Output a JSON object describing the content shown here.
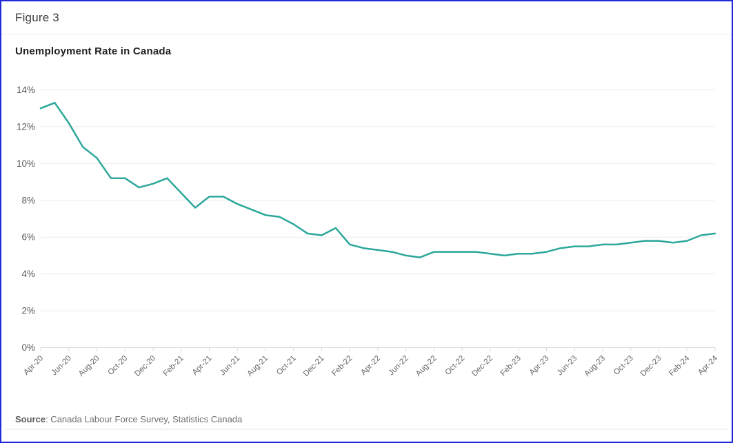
{
  "figure": {
    "label": "Figure 3"
  },
  "source": {
    "label": "Source",
    "text": ": Canada Labour Force Survey, Statistics Canada"
  },
  "colors": {
    "line": "#2ba79b",
    "border": "#2228d6",
    "grid": "#ebebeb",
    "axis_line": "#dcdcdc",
    "tick": "#d9d9d9",
    "y_label": "#595959",
    "x_label": "#666666"
  },
  "chart_data": {
    "type": "line",
    "title": "Unemployment Rate in Canada",
    "xlabel": "",
    "ylabel": "",
    "ylim": [
      0,
      14
    ],
    "yticks": [
      0,
      2,
      4,
      6,
      8,
      10,
      12,
      14
    ],
    "ytick_suffix": "%",
    "grid": true,
    "legend": false,
    "line_color": "#2ba79b",
    "x_tick_interval": 2,
    "x": [
      "Apr-20",
      "May-20",
      "Jun-20",
      "Jul-20",
      "Aug-20",
      "Sep-20",
      "Oct-20",
      "Nov-20",
      "Dec-20",
      "Jan-21",
      "Feb-21",
      "Mar-21",
      "Apr-21",
      "May-21",
      "Jun-21",
      "Jul-21",
      "Aug-21",
      "Sep-21",
      "Oct-21",
      "Nov-21",
      "Dec-21",
      "Jan-22",
      "Feb-22",
      "Mar-22",
      "Apr-22",
      "May-22",
      "Jun-22",
      "Jul-22",
      "Aug-22",
      "Sep-22",
      "Oct-22",
      "Nov-22",
      "Dec-22",
      "Jan-23",
      "Feb-23",
      "Mar-23",
      "Apr-23",
      "May-23",
      "Jun-23",
      "Jul-23",
      "Aug-23",
      "Sep-23",
      "Oct-23",
      "Nov-23",
      "Dec-23",
      "Jan-24",
      "Feb-24",
      "Mar-24",
      "Apr-24"
    ],
    "x_tick_labels": [
      "Apr-20",
      "Jun-20",
      "Aug-20",
      "Oct-20",
      "Dec-20",
      "Feb-21",
      "Apr-21",
      "Jun-21",
      "Aug-21",
      "Oct-21",
      "Dec-21",
      "Feb-22",
      "Apr-22",
      "Jun-22",
      "Aug-22",
      "Oct-22",
      "Dec-22",
      "Feb-23",
      "Apr-23",
      "Jun-23",
      "Aug-23",
      "Oct-23",
      "Dec-23",
      "Feb-24",
      "Apr-24"
    ],
    "values": [
      13.0,
      13.3,
      12.2,
      10.9,
      10.3,
      9.2,
      9.2,
      8.7,
      8.9,
      9.2,
      8.4,
      7.6,
      8.2,
      8.2,
      7.8,
      7.5,
      7.2,
      7.1,
      6.7,
      6.2,
      6.1,
      6.5,
      5.6,
      5.4,
      5.3,
      5.2,
      5.0,
      4.9,
      5.2,
      5.2,
      5.2,
      5.2,
      5.1,
      5.0,
      5.1,
      5.1,
      5.2,
      5.4,
      5.5,
      5.5,
      5.6,
      5.6,
      5.7,
      5.8,
      5.8,
      5.7,
      5.8,
      6.1,
      6.2
    ]
  }
}
